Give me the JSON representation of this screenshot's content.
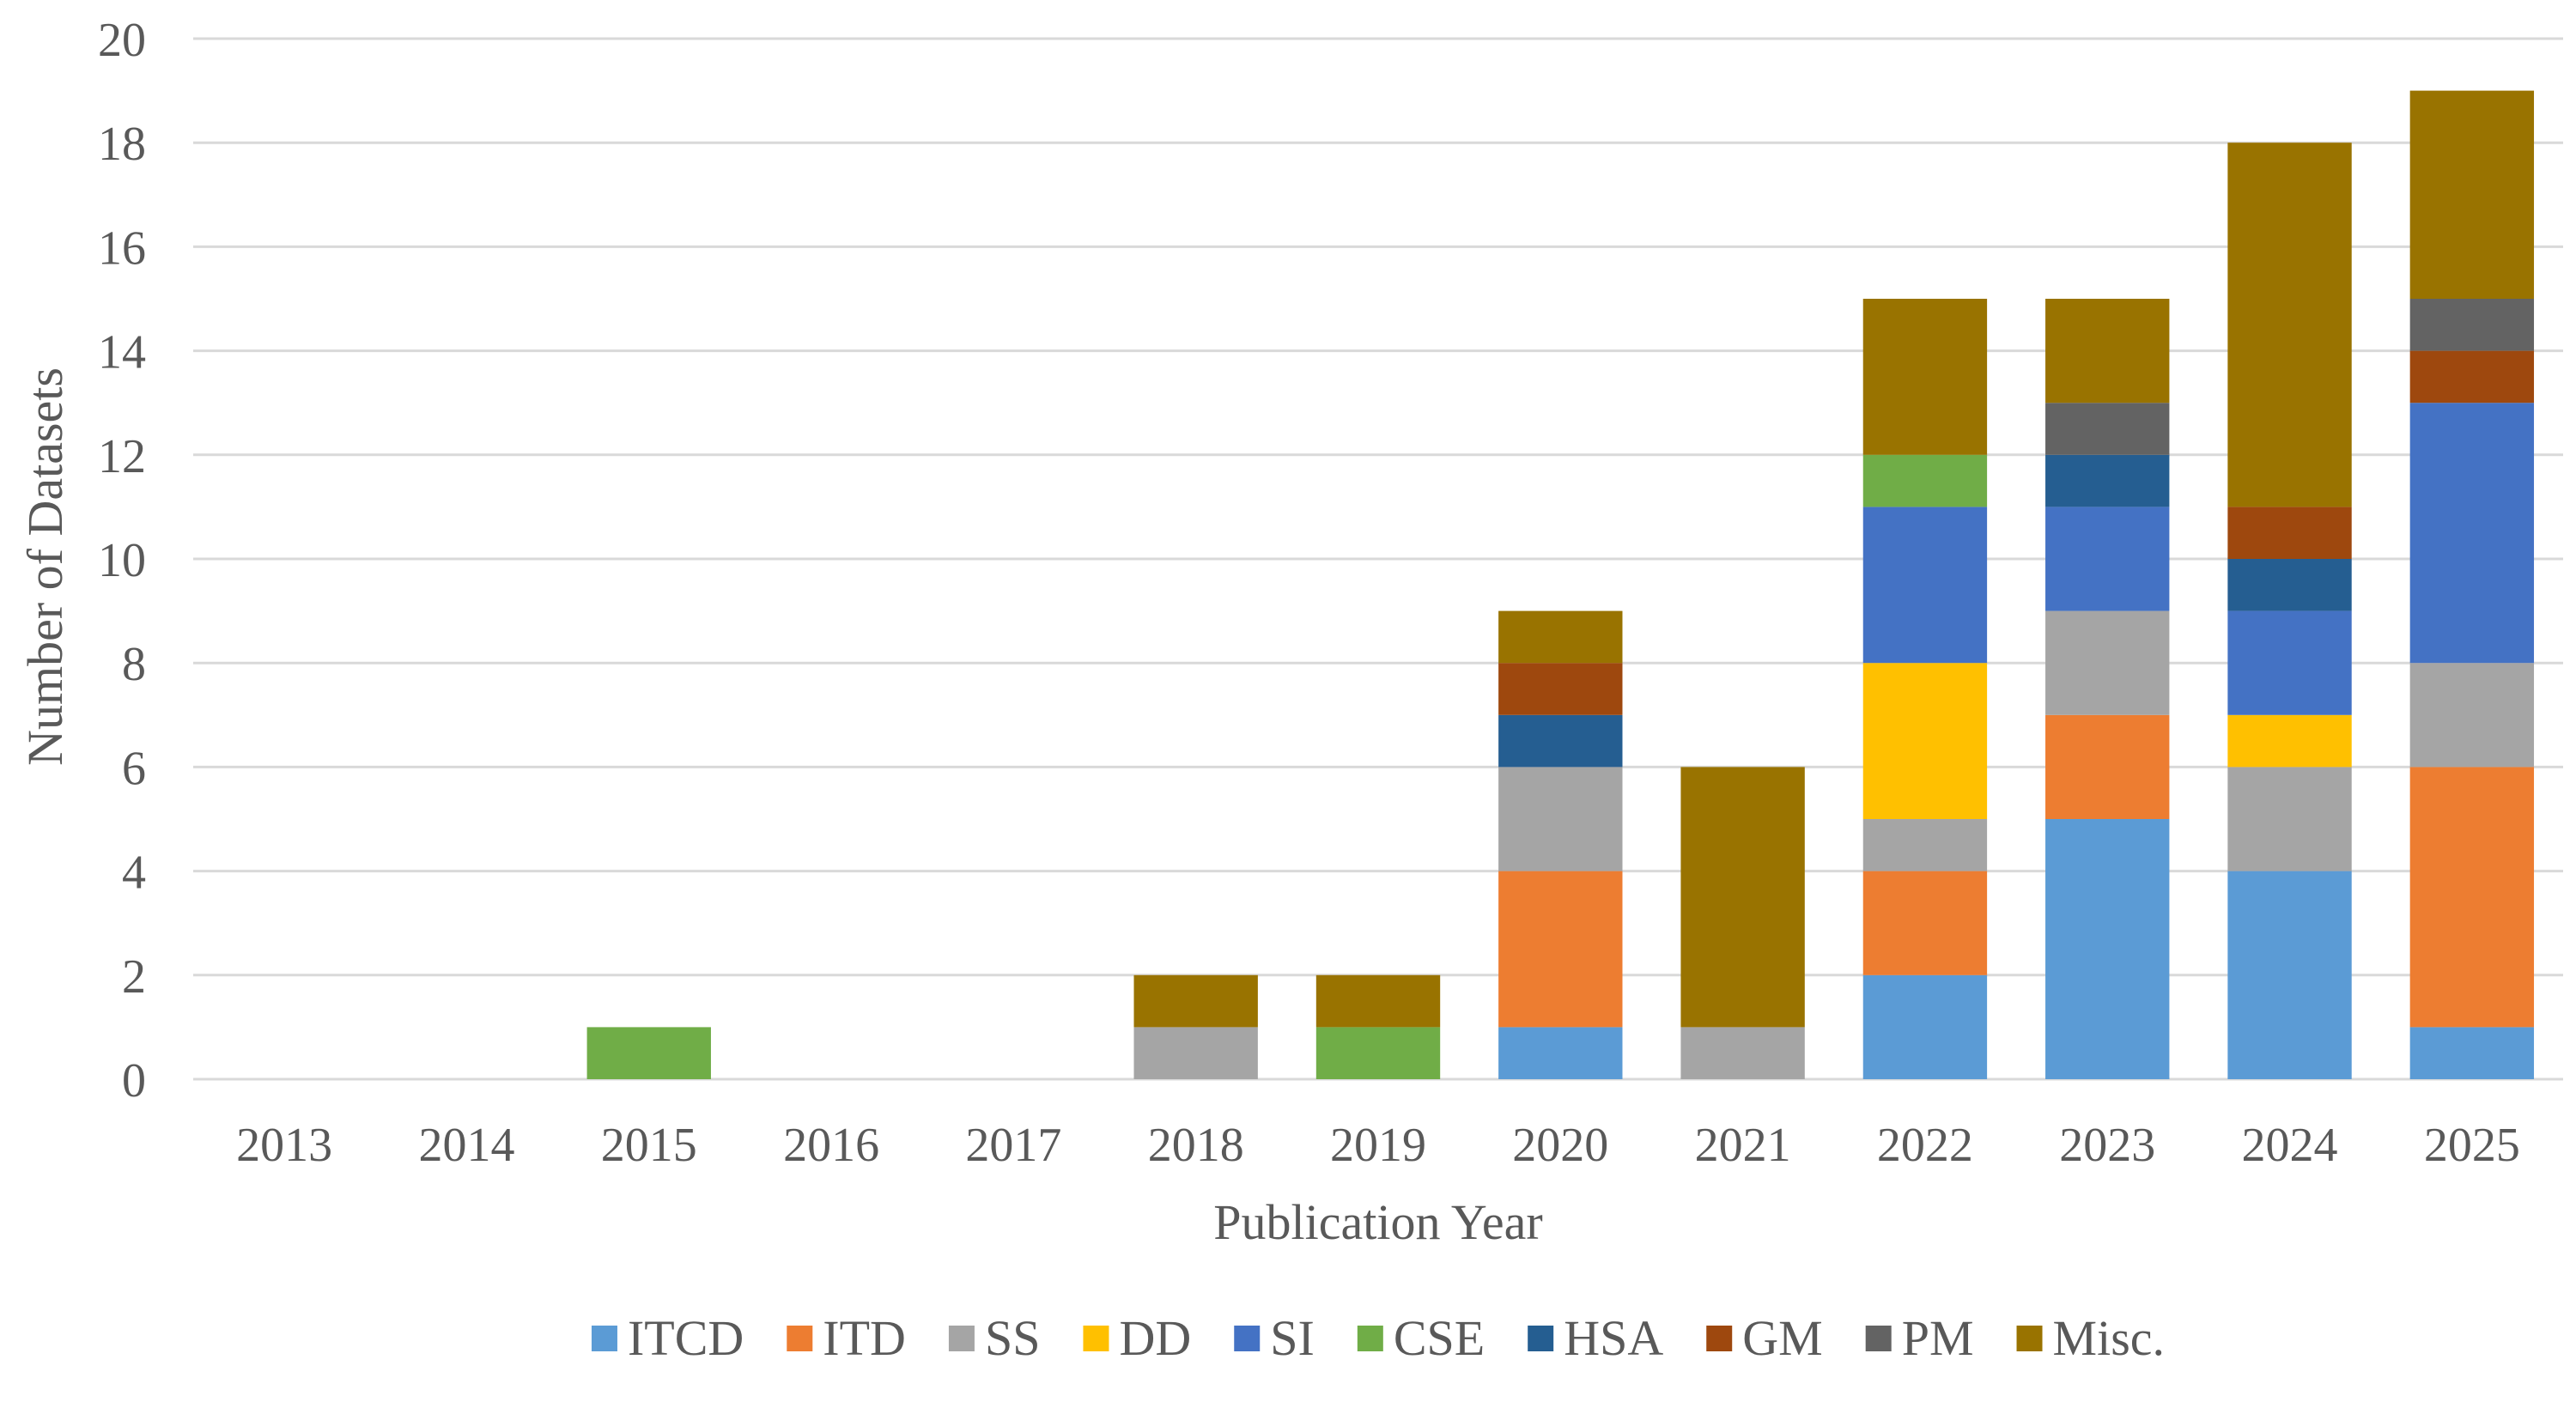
{
  "chart_data": {
    "type": "bar",
    "stacked": true,
    "title": "",
    "xlabel": "Publication Year",
    "ylabel": "Number of Datasets",
    "ylim": [
      0,
      20
    ],
    "yticks": [
      0,
      2,
      4,
      6,
      8,
      10,
      12,
      14,
      16,
      18,
      20
    ],
    "grid": true,
    "legend_position": "bottom",
    "categories": [
      "2013",
      "2014",
      "2015",
      "2016",
      "2017",
      "2018",
      "2019",
      "2020",
      "2021",
      "2022",
      "2023",
      "2024",
      "2025"
    ],
    "series": [
      {
        "name": "ITCD",
        "color": "#5b9bd5",
        "values": [
          0,
          0,
          0,
          0,
          0,
          0,
          0,
          1,
          0,
          2,
          5,
          4,
          1
        ]
      },
      {
        "name": "ITD",
        "color": "#ed7d31",
        "values": [
          0,
          0,
          0,
          0,
          0,
          0,
          0,
          3,
          0,
          2,
          2,
          0,
          5
        ]
      },
      {
        "name": "SS",
        "color": "#a5a5a5",
        "values": [
          0,
          0,
          0,
          0,
          0,
          1,
          0,
          2,
          1,
          1,
          2,
          2,
          2
        ]
      },
      {
        "name": "DD",
        "color": "#ffc000",
        "values": [
          0,
          0,
          0,
          0,
          0,
          0,
          0,
          0,
          0,
          3,
          0,
          1,
          0
        ]
      },
      {
        "name": "SI",
        "color": "#4472c4",
        "values": [
          0,
          0,
          0,
          0,
          0,
          0,
          0,
          0,
          0,
          3,
          2,
          2,
          5
        ]
      },
      {
        "name": "CSE",
        "color": "#70ad47",
        "values": [
          0,
          0,
          1,
          0,
          0,
          0,
          1,
          0,
          0,
          1,
          0,
          0,
          0
        ]
      },
      {
        "name": "HSA",
        "color": "#255e91",
        "values": [
          0,
          0,
          0,
          0,
          0,
          0,
          0,
          1,
          0,
          0,
          1,
          1,
          0
        ]
      },
      {
        "name": "GM",
        "color": "#9e480e",
        "values": [
          0,
          0,
          0,
          0,
          0,
          0,
          0,
          1,
          0,
          0,
          0,
          1,
          1
        ]
      },
      {
        "name": "PM",
        "color": "#636363",
        "values": [
          0,
          0,
          0,
          0,
          0,
          0,
          0,
          0,
          0,
          0,
          1,
          0,
          1
        ]
      },
      {
        "name": "Misc.",
        "color": "#997300",
        "values": [
          0,
          0,
          0,
          0,
          0,
          1,
          1,
          1,
          5,
          3,
          2,
          7,
          4
        ]
      }
    ]
  }
}
